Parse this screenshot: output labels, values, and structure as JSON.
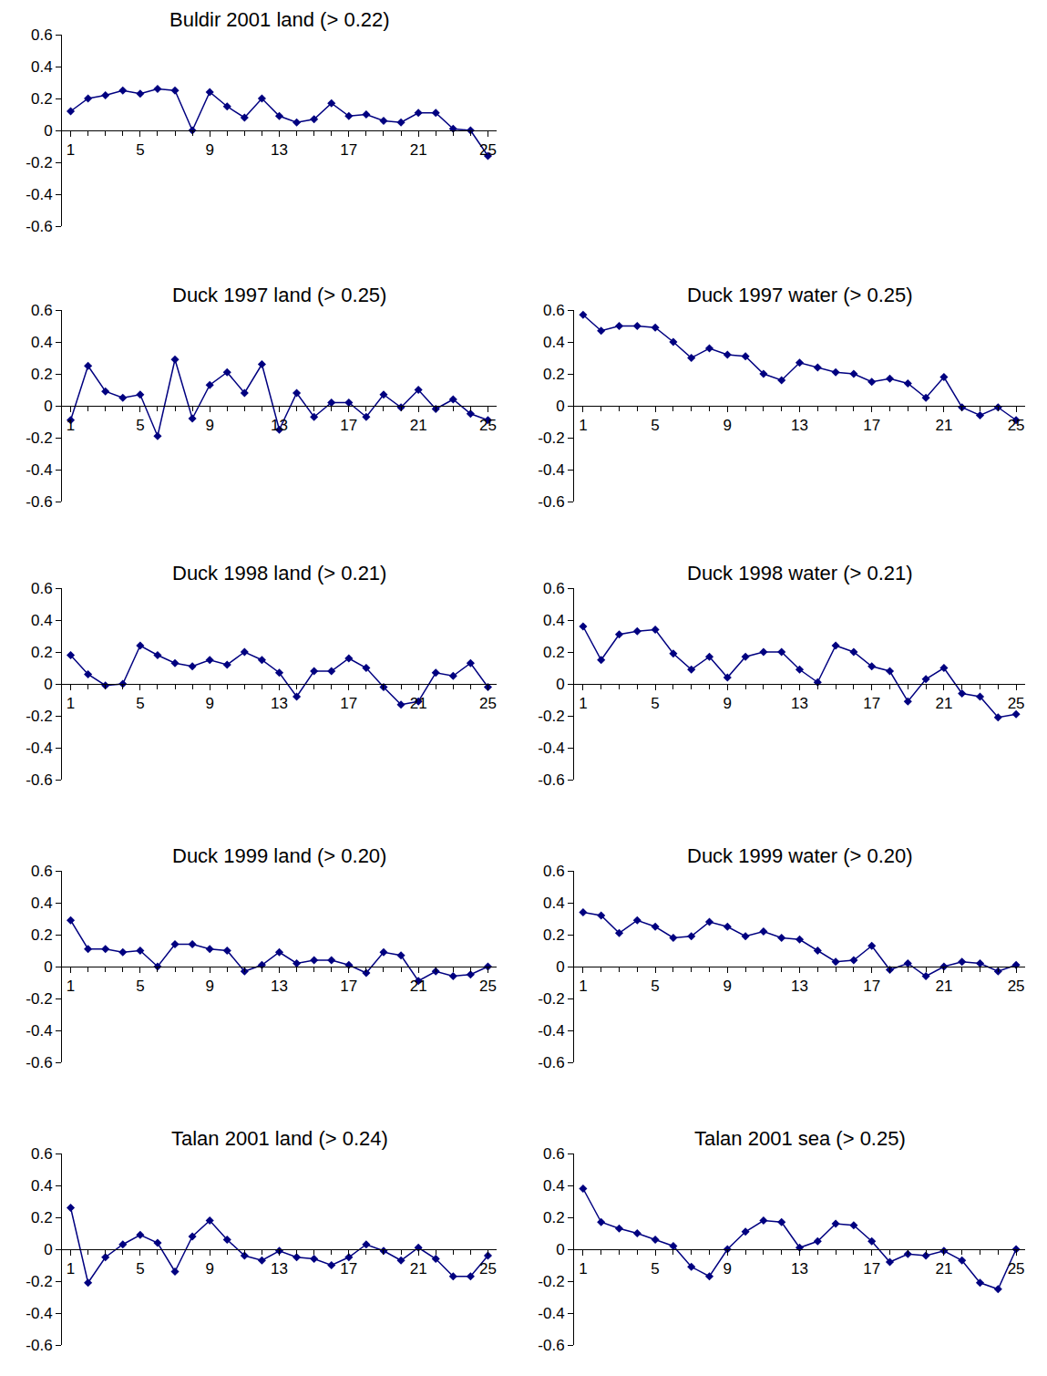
{
  "chart_data": [
    {
      "type": "line",
      "title": "Buldir 2001 land (> 0.22)",
      "color": "#000080",
      "marker": "diamond",
      "grid": false,
      "x": [
        1,
        2,
        3,
        4,
        5,
        6,
        7,
        8,
        9,
        10,
        11,
        12,
        13,
        14,
        15,
        16,
        17,
        18,
        19,
        20,
        21,
        22,
        23,
        24,
        25
      ],
      "values": [
        0.12,
        0.2,
        0.22,
        0.25,
        0.23,
        0.26,
        0.25,
        0.0,
        0.24,
        0.15,
        0.08,
        0.2,
        0.09,
        0.05,
        0.07,
        0.17,
        0.09,
        0.1,
        0.06,
        0.05,
        0.11,
        0.11,
        0.01,
        0.0,
        -0.16
      ],
      "xlim": [
        0.5,
        25.5
      ],
      "xticks": [
        1,
        5,
        9,
        13,
        17,
        21,
        25
      ],
      "ylim": [
        -0.6,
        0.6
      ],
      "yticks": [
        -0.6,
        -0.4,
        -0.2,
        0,
        0.2,
        0.4,
        0.6
      ]
    },
    {
      "type": "line",
      "title": "Duck 1997 land (> 0.25)",
      "color": "#000080",
      "marker": "diamond",
      "grid": false,
      "x": [
        1,
        2,
        3,
        4,
        5,
        6,
        7,
        8,
        9,
        10,
        11,
        12,
        13,
        14,
        15,
        16,
        17,
        18,
        19,
        20,
        21,
        22,
        23,
        24,
        25
      ],
      "values": [
        -0.09,
        0.25,
        0.09,
        0.05,
        0.07,
        -0.19,
        0.29,
        -0.08,
        0.13,
        0.21,
        0.08,
        0.26,
        -0.15,
        0.08,
        -0.07,
        0.02,
        0.02,
        -0.07,
        0.07,
        -0.01,
        0.1,
        -0.02,
        0.04,
        -0.05,
        -0.09
      ],
      "xlim": [
        0.5,
        25.5
      ],
      "xticks": [
        1,
        5,
        9,
        13,
        17,
        21,
        25
      ],
      "ylim": [
        -0.6,
        0.6
      ],
      "yticks": [
        -0.6,
        -0.4,
        -0.2,
        0,
        0.2,
        0.4,
        0.6
      ]
    },
    {
      "type": "line",
      "title": "Duck 1997 water (> 0.25)",
      "color": "#000080",
      "marker": "diamond",
      "grid": false,
      "x": [
        1,
        2,
        3,
        4,
        5,
        6,
        7,
        8,
        9,
        10,
        11,
        12,
        13,
        14,
        15,
        16,
        17,
        18,
        19,
        20,
        21,
        22,
        23,
        24,
        25
      ],
      "values": [
        0.57,
        0.47,
        0.5,
        0.5,
        0.49,
        0.4,
        0.3,
        0.36,
        0.32,
        0.31,
        0.2,
        0.16,
        0.27,
        0.24,
        0.21,
        0.2,
        0.15,
        0.17,
        0.14,
        0.05,
        0.18,
        -0.01,
        -0.06,
        -0.01,
        -0.09
      ],
      "xlim": [
        0.5,
        25.5
      ],
      "xticks": [
        1,
        5,
        9,
        13,
        17,
        21,
        25
      ],
      "ylim": [
        -0.6,
        0.6
      ],
      "yticks": [
        -0.6,
        -0.4,
        -0.2,
        0,
        0.2,
        0.4,
        0.6
      ]
    },
    {
      "type": "line",
      "title": "Duck 1998 land (> 0.21)",
      "color": "#000080",
      "marker": "diamond",
      "grid": false,
      "x": [
        1,
        2,
        3,
        4,
        5,
        6,
        7,
        8,
        9,
        10,
        11,
        12,
        13,
        14,
        15,
        16,
        17,
        18,
        19,
        20,
        21,
        22,
        23,
        24,
        25
      ],
      "values": [
        0.18,
        0.06,
        -0.01,
        0.0,
        0.24,
        0.18,
        0.13,
        0.11,
        0.15,
        0.12,
        0.2,
        0.15,
        0.07,
        -0.08,
        0.08,
        0.08,
        0.16,
        0.1,
        -0.02,
        -0.13,
        -0.11,
        0.07,
        0.05,
        0.13,
        -0.02
      ],
      "xlim": [
        0.5,
        25.5
      ],
      "xticks": [
        1,
        5,
        9,
        13,
        17,
        21,
        25
      ],
      "ylim": [
        -0.6,
        0.6
      ],
      "yticks": [
        -0.6,
        -0.4,
        -0.2,
        0,
        0.2,
        0.4,
        0.6
      ]
    },
    {
      "type": "line",
      "title": "Duck 1998 water (> 0.21)",
      "color": "#000080",
      "marker": "diamond",
      "grid": false,
      "x": [
        1,
        2,
        3,
        4,
        5,
        6,
        7,
        8,
        9,
        10,
        11,
        12,
        13,
        14,
        15,
        16,
        17,
        18,
        19,
        20,
        21,
        22,
        23,
        24,
        25
      ],
      "values": [
        0.36,
        0.15,
        0.31,
        0.33,
        0.34,
        0.19,
        0.09,
        0.17,
        0.04,
        0.17,
        0.2,
        0.2,
        0.09,
        0.01,
        0.24,
        0.2,
        0.11,
        0.08,
        -0.11,
        0.03,
        0.1,
        -0.06,
        -0.08,
        -0.21,
        -0.19
      ],
      "xlim": [
        0.5,
        25.5
      ],
      "xticks": [
        1,
        5,
        9,
        13,
        17,
        21,
        25
      ],
      "ylim": [
        -0.6,
        0.6
      ],
      "yticks": [
        -0.6,
        -0.4,
        -0.2,
        0,
        0.2,
        0.4,
        0.6
      ]
    },
    {
      "type": "line",
      "title": "Duck 1999 land (> 0.20)",
      "color": "#000080",
      "marker": "diamond",
      "grid": false,
      "x": [
        1,
        2,
        3,
        4,
        5,
        6,
        7,
        8,
        9,
        10,
        11,
        12,
        13,
        14,
        15,
        16,
        17,
        18,
        19,
        20,
        21,
        22,
        23,
        24,
        25
      ],
      "values": [
        0.29,
        0.11,
        0.11,
        0.09,
        0.1,
        0.0,
        0.14,
        0.14,
        0.11,
        0.1,
        -0.03,
        0.01,
        0.09,
        0.02,
        0.04,
        0.04,
        0.01,
        -0.04,
        0.09,
        0.07,
        -0.09,
        -0.03,
        -0.06,
        -0.05,
        0.0
      ],
      "xlim": [
        0.5,
        25.5
      ],
      "xticks": [
        1,
        5,
        9,
        13,
        17,
        21,
        25
      ],
      "ylim": [
        -0.6,
        0.6
      ],
      "yticks": [
        -0.6,
        -0.4,
        -0.2,
        0,
        0.2,
        0.4,
        0.6
      ]
    },
    {
      "type": "line",
      "title": "Duck 1999 water (> 0.20)",
      "color": "#000080",
      "marker": "diamond",
      "grid": false,
      "x": [
        1,
        2,
        3,
        4,
        5,
        6,
        7,
        8,
        9,
        10,
        11,
        12,
        13,
        14,
        15,
        16,
        17,
        18,
        19,
        20,
        21,
        22,
        23,
        24,
        25
      ],
      "values": [
        0.34,
        0.32,
        0.21,
        0.29,
        0.25,
        0.18,
        0.19,
        0.28,
        0.25,
        0.19,
        0.22,
        0.18,
        0.17,
        0.1,
        0.03,
        0.04,
        0.13,
        -0.02,
        0.02,
        -0.06,
        0.0,
        0.03,
        0.02,
        -0.03,
        0.01
      ],
      "xlim": [
        0.5,
        25.5
      ],
      "xticks": [
        1,
        5,
        9,
        13,
        17,
        21,
        25
      ],
      "ylim": [
        -0.6,
        0.6
      ],
      "yticks": [
        -0.6,
        -0.4,
        -0.2,
        0,
        0.2,
        0.4,
        0.6
      ]
    },
    {
      "type": "line",
      "title": "Talan 2001 land (> 0.24)",
      "color": "#000080",
      "marker": "diamond",
      "grid": false,
      "x": [
        1,
        2,
        3,
        4,
        5,
        6,
        7,
        8,
        9,
        10,
        11,
        12,
        13,
        14,
        15,
        16,
        17,
        18,
        19,
        20,
        21,
        22,
        23,
        24,
        25
      ],
      "values": [
        0.26,
        -0.21,
        -0.05,
        0.03,
        0.09,
        0.04,
        -0.14,
        0.08,
        0.18,
        0.06,
        -0.04,
        -0.07,
        -0.01,
        -0.05,
        -0.06,
        -0.1,
        -0.05,
        0.03,
        -0.01,
        -0.07,
        0.01,
        -0.06,
        -0.17,
        -0.17,
        -0.04
      ],
      "xlim": [
        0.5,
        25.5
      ],
      "xticks": [
        1,
        5,
        9,
        13,
        17,
        21,
        25
      ],
      "ylim": [
        -0.6,
        0.6
      ],
      "yticks": [
        -0.6,
        -0.4,
        -0.2,
        0,
        0.2,
        0.4,
        0.6
      ]
    },
    {
      "type": "line",
      "title": "Talan 2001 sea (> 0.25)",
      "color": "#000080",
      "marker": "diamond",
      "grid": false,
      "x": [
        1,
        2,
        3,
        4,
        5,
        6,
        7,
        8,
        9,
        10,
        11,
        12,
        13,
        14,
        15,
        16,
        17,
        18,
        19,
        20,
        21,
        22,
        23,
        24,
        25
      ],
      "values": [
        0.38,
        0.17,
        0.13,
        0.1,
        0.06,
        0.02,
        -0.11,
        -0.17,
        0.0,
        0.11,
        0.18,
        0.17,
        0.01,
        0.05,
        0.16,
        0.15,
        0.05,
        -0.08,
        -0.03,
        -0.04,
        -0.01,
        -0.07,
        -0.21,
        -0.25,
        0.0
      ],
      "xlim": [
        0.5,
        25.5
      ],
      "xticks": [
        1,
        5,
        9,
        13,
        17,
        21,
        25
      ],
      "ylim": [
        -0.6,
        0.6
      ],
      "yticks": [
        -0.6,
        -0.4,
        -0.2,
        0,
        0.2,
        0.4,
        0.6
      ]
    }
  ]
}
